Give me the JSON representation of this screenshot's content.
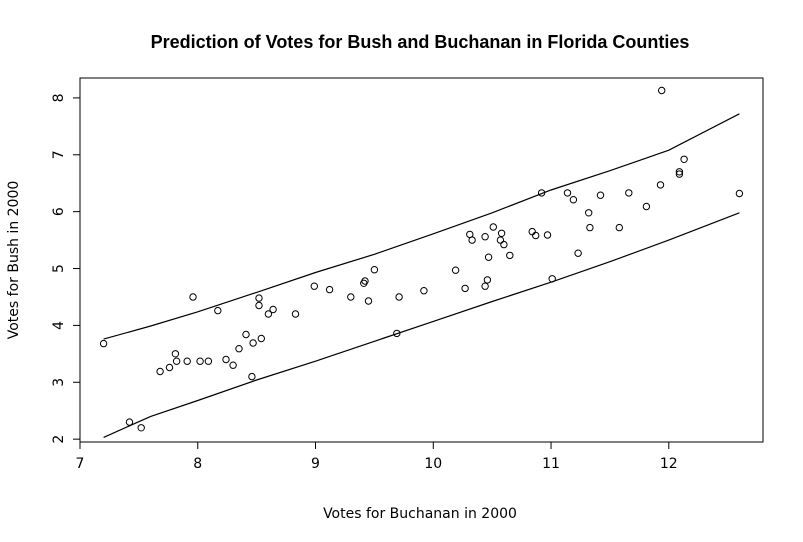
{
  "chart_data": {
    "type": "scatter",
    "title": "Prediction of Votes for Bush and Buchanan in Florida Counties",
    "xlabel": "Votes for Buchanan in 2000",
    "ylabel": "Votes for Bush in 2000",
    "xlim": [
      7,
      12.8
    ],
    "ylim": [
      1.95,
      8.35
    ],
    "xticks": [
      7,
      8,
      9,
      10,
      11,
      12
    ],
    "yticks": [
      2,
      3,
      4,
      5,
      6,
      7,
      8
    ],
    "grid": false,
    "points": [
      {
        "x": 7.2,
        "y": 3.68
      },
      {
        "x": 7.42,
        "y": 2.3
      },
      {
        "x": 7.52,
        "y": 2.2
      },
      {
        "x": 7.68,
        "y": 3.19
      },
      {
        "x": 7.76,
        "y": 3.26
      },
      {
        "x": 7.81,
        "y": 3.5
      },
      {
        "x": 7.82,
        "y": 3.37
      },
      {
        "x": 7.91,
        "y": 3.37
      },
      {
        "x": 7.96,
        "y": 4.5
      },
      {
        "x": 8.02,
        "y": 3.37
      },
      {
        "x": 8.09,
        "y": 3.37
      },
      {
        "x": 8.17,
        "y": 4.26
      },
      {
        "x": 8.24,
        "y": 3.4
      },
      {
        "x": 8.3,
        "y": 3.3
      },
      {
        "x": 8.35,
        "y": 3.59
      },
      {
        "x": 8.41,
        "y": 3.84
      },
      {
        "x": 8.46,
        "y": 3.1
      },
      {
        "x": 8.47,
        "y": 3.69
      },
      {
        "x": 8.52,
        "y": 4.48
      },
      {
        "x": 8.52,
        "y": 4.35
      },
      {
        "x": 8.54,
        "y": 3.77
      },
      {
        "x": 8.6,
        "y": 4.2
      },
      {
        "x": 8.64,
        "y": 4.28
      },
      {
        "x": 8.83,
        "y": 4.2
      },
      {
        "x": 8.99,
        "y": 4.69
      },
      {
        "x": 9.12,
        "y": 4.63
      },
      {
        "x": 9.3,
        "y": 4.5
      },
      {
        "x": 9.41,
        "y": 4.74
      },
      {
        "x": 9.42,
        "y": 4.78
      },
      {
        "x": 9.45,
        "y": 4.43
      },
      {
        "x": 9.5,
        "y": 4.98
      },
      {
        "x": 9.69,
        "y": 3.86
      },
      {
        "x": 9.71,
        "y": 4.5
      },
      {
        "x": 9.92,
        "y": 4.61
      },
      {
        "x": 10.19,
        "y": 4.97
      },
      {
        "x": 10.27,
        "y": 4.65
      },
      {
        "x": 10.31,
        "y": 5.6
      },
      {
        "x": 10.33,
        "y": 5.5
      },
      {
        "x": 10.44,
        "y": 5.56
      },
      {
        "x": 10.44,
        "y": 4.69
      },
      {
        "x": 10.46,
        "y": 4.8
      },
      {
        "x": 10.47,
        "y": 5.2
      },
      {
        "x": 10.51,
        "y": 5.73
      },
      {
        "x": 10.57,
        "y": 5.5
      },
      {
        "x": 10.58,
        "y": 5.62
      },
      {
        "x": 10.6,
        "y": 5.42
      },
      {
        "x": 10.65,
        "y": 5.23
      },
      {
        "x": 10.84,
        "y": 5.65
      },
      {
        "x": 10.87,
        "y": 5.58
      },
      {
        "x": 10.92,
        "y": 6.33
      },
      {
        "x": 10.97,
        "y": 5.59
      },
      {
        "x": 11.01,
        "y": 4.82
      },
      {
        "x": 11.14,
        "y": 6.33
      },
      {
        "x": 11.19,
        "y": 6.21
      },
      {
        "x": 11.23,
        "y": 5.27
      },
      {
        "x": 11.32,
        "y": 5.98
      },
      {
        "x": 11.33,
        "y": 5.72
      },
      {
        "x": 11.42,
        "y": 6.29
      },
      {
        "x": 11.58,
        "y": 5.72
      },
      {
        "x": 11.66,
        "y": 6.33
      },
      {
        "x": 11.81,
        "y": 6.09
      },
      {
        "x": 11.93,
        "y": 6.47
      },
      {
        "x": 11.94,
        "y": 8.13
      },
      {
        "x": 12.09,
        "y": 6.7
      },
      {
        "x": 12.09,
        "y": 6.66
      },
      {
        "x": 12.13,
        "y": 6.92
      },
      {
        "x": 12.6,
        "y": 6.32
      }
    ],
    "bands": [
      {
        "x": [
          7.2,
          7.6,
          8.0,
          8.5,
          9.0,
          9.5,
          10.0,
          10.5,
          11.0,
          11.5,
          12.0,
          12.6
        ],
        "y": [
          3.76,
          3.99,
          4.24,
          4.58,
          4.93,
          5.25,
          5.61,
          5.98,
          6.38,
          6.72,
          7.08,
          7.72
        ]
      },
      {
        "x": [
          7.2,
          7.6,
          8.0,
          8.5,
          9.0,
          9.5,
          10.0,
          10.5,
          11.0,
          11.5,
          12.0,
          12.6
        ],
        "y": [
          2.03,
          2.4,
          2.68,
          3.04,
          3.37,
          3.72,
          4.07,
          4.42,
          4.76,
          5.12,
          5.5,
          5.98
        ]
      }
    ]
  }
}
